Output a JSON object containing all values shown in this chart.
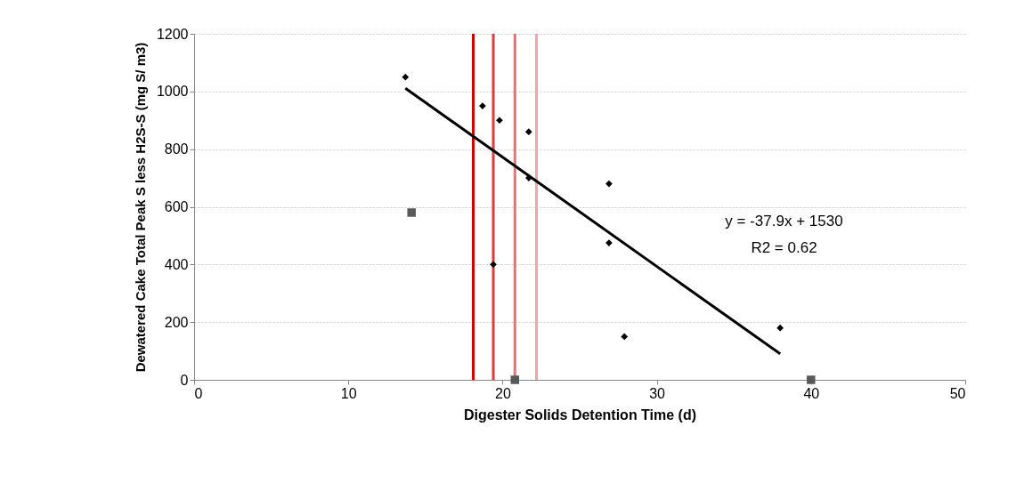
{
  "chart_data": {
    "type": "scatter",
    "xlabel": "Digester Solids Detention Time (d)",
    "ylabel": "Dewatered Cake Total Peak S less H2S-S (mg S/ m3)",
    "xlim": [
      0,
      50
    ],
    "xticks": [
      0,
      10,
      20,
      30,
      40,
      50
    ],
    "ylim": [
      0,
      1200
    ],
    "yticks": [
      0,
      200,
      400,
      600,
      800,
      1000,
      1200
    ],
    "grid": "y",
    "series": [
      {
        "marker": "diamond",
        "color": "#000000",
        "x": [
          13.7,
          18.7,
          19.8,
          21.7,
          21.7,
          19.4,
          26.9,
          26.9,
          27.9,
          38.0
        ],
        "values": [
          1050,
          950,
          900,
          860,
          700,
          400,
          680,
          475,
          150,
          180
        ]
      },
      {
        "marker": "square",
        "color": "#595959",
        "x": [
          14.1,
          20.8,
          40.0
        ],
        "values": [
          580,
          0,
          0
        ]
      },
      {
        "type": "line",
        "color": "#000000",
        "x": [
          13.7,
          38.0
        ],
        "values": [
          1011,
          90
        ]
      }
    ],
    "ref_lines": [
      {
        "axis": "x",
        "value": 18.1,
        "color": "#d00000"
      },
      {
        "axis": "x",
        "value": 19.4,
        "color": "#e03c3c"
      },
      {
        "axis": "x",
        "value": 20.8,
        "color": "#ec7070"
      },
      {
        "axis": "x",
        "value": 22.2,
        "color": "#f4a4a4"
      }
    ],
    "annotations": [
      "y = -37.9x + 1530",
      "R2 = 0.62"
    ]
  }
}
